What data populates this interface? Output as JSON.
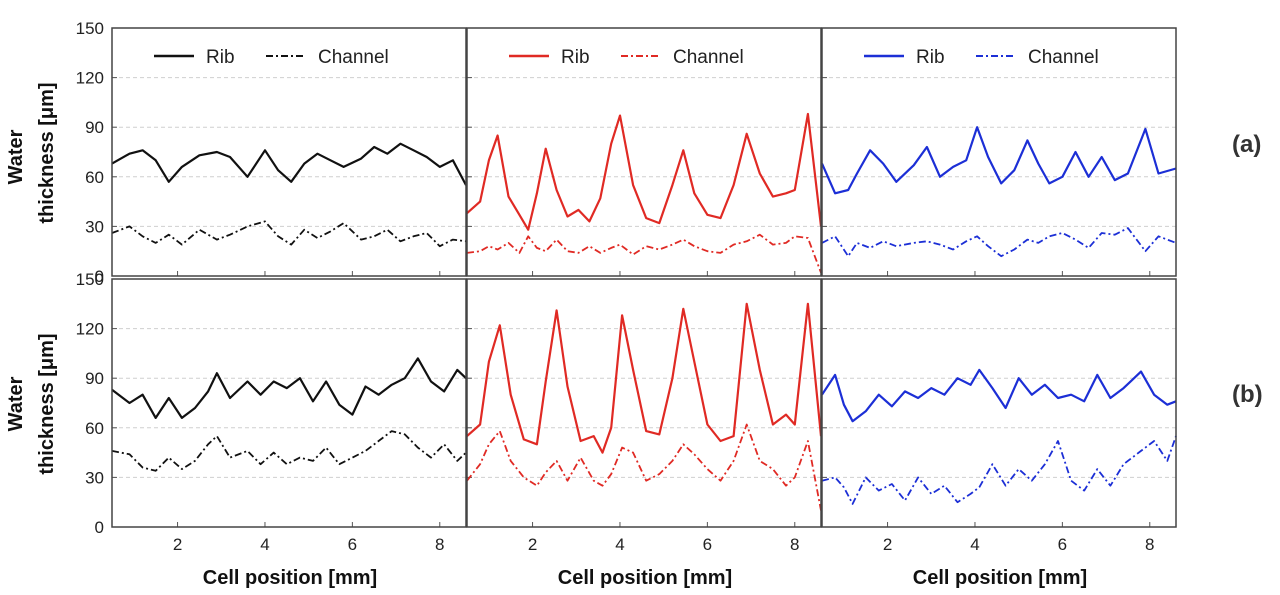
{
  "figure": {
    "ylabel_line1": "Water",
    "ylabel_line2": "thickness [μm]",
    "xlabel": "Cell position [mm]",
    "row_labels": [
      "(a)",
      "(b)"
    ],
    "colors": {
      "black": "#111111",
      "red": "#e02a24",
      "blue": "#1c2fd6"
    }
  },
  "chart_data": [
    {
      "row": "(a)",
      "column": 1,
      "type": "line",
      "color": "#111111",
      "xlim": [
        0.5,
        8.6
      ],
      "ylim": [
        0,
        150
      ],
      "xticks": [
        2,
        4,
        6,
        8
      ],
      "yticks": [
        0,
        30,
        60,
        90,
        120,
        150
      ],
      "legend": [
        "Rib",
        "Channel"
      ],
      "x": [
        0.5,
        0.9,
        1.2,
        1.5,
        1.8,
        2.1,
        2.5,
        2.9,
        3.2,
        3.6,
        4.0,
        4.3,
        4.6,
        4.9,
        5.2,
        5.5,
        5.8,
        6.2,
        6.5,
        6.8,
        7.1,
        7.4,
        7.7,
        8.0,
        8.3,
        8.6
      ],
      "series": [
        {
          "name": "Rib",
          "dash": "solid",
          "values": [
            68,
            74,
            76,
            70,
            57,
            66,
            73,
            75,
            72,
            60,
            76,
            64,
            57,
            68,
            74,
            70,
            66,
            71,
            78,
            74,
            80,
            76,
            72,
            66,
            70,
            55
          ]
        },
        {
          "name": "Channel",
          "dash": "dashdot",
          "values": [
            26,
            30,
            24,
            20,
            25,
            19,
            28,
            22,
            25,
            30,
            33,
            24,
            19,
            28,
            23,
            27,
            32,
            22,
            24,
            28,
            21,
            24,
            26,
            18,
            22,
            21
          ]
        }
      ]
    },
    {
      "row": "(a)",
      "column": 2,
      "type": "line",
      "color": "#e02a24",
      "xlim": [
        0.5,
        8.6
      ],
      "ylim": [
        0,
        150
      ],
      "xticks": [
        2,
        4,
        6,
        8
      ],
      "yticks": [
        0,
        30,
        60,
        90,
        120,
        150
      ],
      "legend": [
        "Rib",
        "Channel"
      ],
      "x": [
        0.5,
        0.8,
        1.0,
        1.2,
        1.45,
        1.7,
        1.9,
        2.1,
        2.3,
        2.55,
        2.8,
        3.05,
        3.3,
        3.55,
        3.8,
        4.0,
        4.3,
        4.6,
        4.9,
        5.2,
        5.45,
        5.7,
        6.0,
        6.3,
        6.6,
        6.9,
        7.2,
        7.5,
        7.8,
        8.0,
        8.3,
        8.6
      ],
      "series": [
        {
          "name": "Rib",
          "dash": "solid",
          "values": [
            38,
            45,
            70,
            85,
            48,
            37,
            28,
            50,
            77,
            52,
            36,
            40,
            33,
            47,
            80,
            97,
            55,
            35,
            32,
            55,
            76,
            50,
            37,
            35,
            55,
            86,
            62,
            48,
            50,
            52,
            98,
            30
          ]
        },
        {
          "name": "Channel",
          "dash": "dashdot",
          "values": [
            14,
            15,
            18,
            16,
            20,
            14,
            24,
            17,
            15,
            22,
            15,
            14,
            18,
            14,
            17,
            19,
            13,
            18,
            16,
            19,
            22,
            18,
            15,
            14,
            19,
            21,
            25,
            19,
            20,
            24,
            23,
            2
          ]
        }
      ]
    },
    {
      "row": "(a)",
      "column": 3,
      "type": "line",
      "color": "#1c2fd6",
      "xlim": [
        0.5,
        8.6
      ],
      "ylim": [
        0,
        150
      ],
      "xticks": [
        2,
        4,
        6,
        8
      ],
      "yticks": [
        0,
        30,
        60,
        90,
        120,
        150
      ],
      "legend": [
        "Rib",
        "Channel"
      ],
      "x": [
        0.5,
        0.8,
        1.1,
        1.3,
        1.6,
        1.9,
        2.2,
        2.6,
        2.9,
        3.2,
        3.5,
        3.8,
        4.05,
        4.3,
        4.6,
        4.9,
        5.2,
        5.45,
        5.7,
        6.0,
        6.3,
        6.6,
        6.9,
        7.2,
        7.5,
        7.9,
        8.2,
        8.6
      ],
      "series": [
        {
          "name": "Rib",
          "dash": "solid",
          "values": [
            68,
            50,
            52,
            62,
            76,
            68,
            57,
            67,
            78,
            60,
            66,
            70,
            90,
            72,
            56,
            64,
            82,
            68,
            56,
            60,
            75,
            60,
            72,
            58,
            62,
            89,
            62,
            65
          ]
        },
        {
          "name": "Channel",
          "dash": "dashdot",
          "values": [
            20,
            24,
            12,
            20,
            17,
            21,
            18,
            20,
            21,
            19,
            16,
            21,
            24,
            18,
            12,
            16,
            22,
            20,
            24,
            26,
            22,
            17,
            26,
            25,
            29,
            15,
            24,
            20
          ]
        }
      ]
    },
    {
      "row": "(b)",
      "column": 1,
      "type": "line",
      "color": "#111111",
      "xlim": [
        0.5,
        8.6
      ],
      "ylim": [
        0,
        150
      ],
      "xticks": [
        2,
        4,
        6,
        8
      ],
      "yticks": [
        0,
        30,
        60,
        90,
        120,
        150
      ],
      "x": [
        0.5,
        0.9,
        1.2,
        1.5,
        1.8,
        2.1,
        2.4,
        2.7,
        2.9,
        3.2,
        3.6,
        3.9,
        4.2,
        4.5,
        4.8,
        5.1,
        5.4,
        5.7,
        6.0,
        6.3,
        6.6,
        6.9,
        7.2,
        7.5,
        7.8,
        8.1,
        8.4,
        8.6
      ],
      "series": [
        {
          "name": "Rib",
          "dash": "solid",
          "values": [
            83,
            75,
            80,
            66,
            78,
            66,
            72,
            82,
            93,
            78,
            88,
            80,
            88,
            84,
            90,
            76,
            88,
            74,
            68,
            85,
            80,
            86,
            90,
            102,
            88,
            82,
            95,
            90
          ]
        },
        {
          "name": "Channel",
          "dash": "dashdot",
          "values": [
            46,
            44,
            36,
            34,
            42,
            35,
            40,
            50,
            55,
            42,
            46,
            38,
            45,
            38,
            42,
            40,
            48,
            38,
            42,
            46,
            52,
            58,
            56,
            48,
            42,
            50,
            40,
            45
          ]
        }
      ]
    },
    {
      "row": "(b)",
      "column": 2,
      "type": "line",
      "color": "#e02a24",
      "xlim": [
        0.5,
        8.6
      ],
      "ylim": [
        0,
        150
      ],
      "xticks": [
        2,
        4,
        6,
        8
      ],
      "yticks": [
        0,
        30,
        60,
        90,
        120,
        150
      ],
      "x": [
        0.5,
        0.8,
        1.0,
        1.25,
        1.5,
        1.8,
        2.1,
        2.3,
        2.55,
        2.8,
        3.1,
        3.4,
        3.6,
        3.8,
        4.05,
        4.3,
        4.6,
        4.9,
        5.2,
        5.45,
        5.7,
        6.0,
        6.3,
        6.6,
        6.9,
        7.2,
        7.5,
        7.8,
        8.0,
        8.3,
        8.6
      ],
      "series": [
        {
          "name": "Rib",
          "dash": "solid",
          "values": [
            55,
            62,
            100,
            122,
            80,
            53,
            50,
            88,
            131,
            85,
            52,
            55,
            45,
            60,
            128,
            95,
            58,
            56,
            90,
            132,
            100,
            62,
            52,
            55,
            135,
            95,
            62,
            68,
            62,
            135,
            55
          ]
        },
        {
          "name": "Channel",
          "dash": "dashdot",
          "values": [
            28,
            38,
            50,
            58,
            40,
            30,
            25,
            33,
            40,
            28,
            42,
            28,
            25,
            32,
            48,
            45,
            28,
            32,
            40,
            50,
            44,
            35,
            28,
            40,
            62,
            40,
            35,
            25,
            30,
            52,
            10
          ]
        }
      ]
    },
    {
      "row": "(b)",
      "column": 3,
      "type": "line",
      "color": "#1c2fd6",
      "xlim": [
        0.5,
        8.6
      ],
      "ylim": [
        0,
        150
      ],
      "xticks": [
        2,
        4,
        6,
        8
      ],
      "yticks": [
        0,
        30,
        60,
        90,
        120,
        150
      ],
      "x": [
        0.5,
        0.8,
        1.0,
        1.2,
        1.5,
        1.8,
        2.1,
        2.4,
        2.7,
        3.0,
        3.3,
        3.6,
        3.9,
        4.1,
        4.4,
        4.7,
        5.0,
        5.3,
        5.6,
        5.9,
        6.2,
        6.5,
        6.8,
        7.1,
        7.4,
        7.8,
        8.1,
        8.4,
        8.6
      ],
      "series": [
        {
          "name": "Rib",
          "dash": "solid",
          "values": [
            80,
            92,
            74,
            64,
            70,
            80,
            73,
            82,
            78,
            84,
            80,
            90,
            86,
            95,
            84,
            72,
            90,
            80,
            86,
            78,
            80,
            76,
            92,
            78,
            84,
            94,
            80,
            74,
            76
          ]
        },
        {
          "name": "Channel",
          "dash": "dashdot",
          "values": [
            28,
            30,
            24,
            14,
            30,
            22,
            26,
            16,
            30,
            20,
            25,
            15,
            20,
            24,
            38,
            25,
            35,
            28,
            38,
            52,
            28,
            22,
            35,
            25,
            38,
            46,
            52,
            40,
            55
          ]
        }
      ]
    }
  ]
}
